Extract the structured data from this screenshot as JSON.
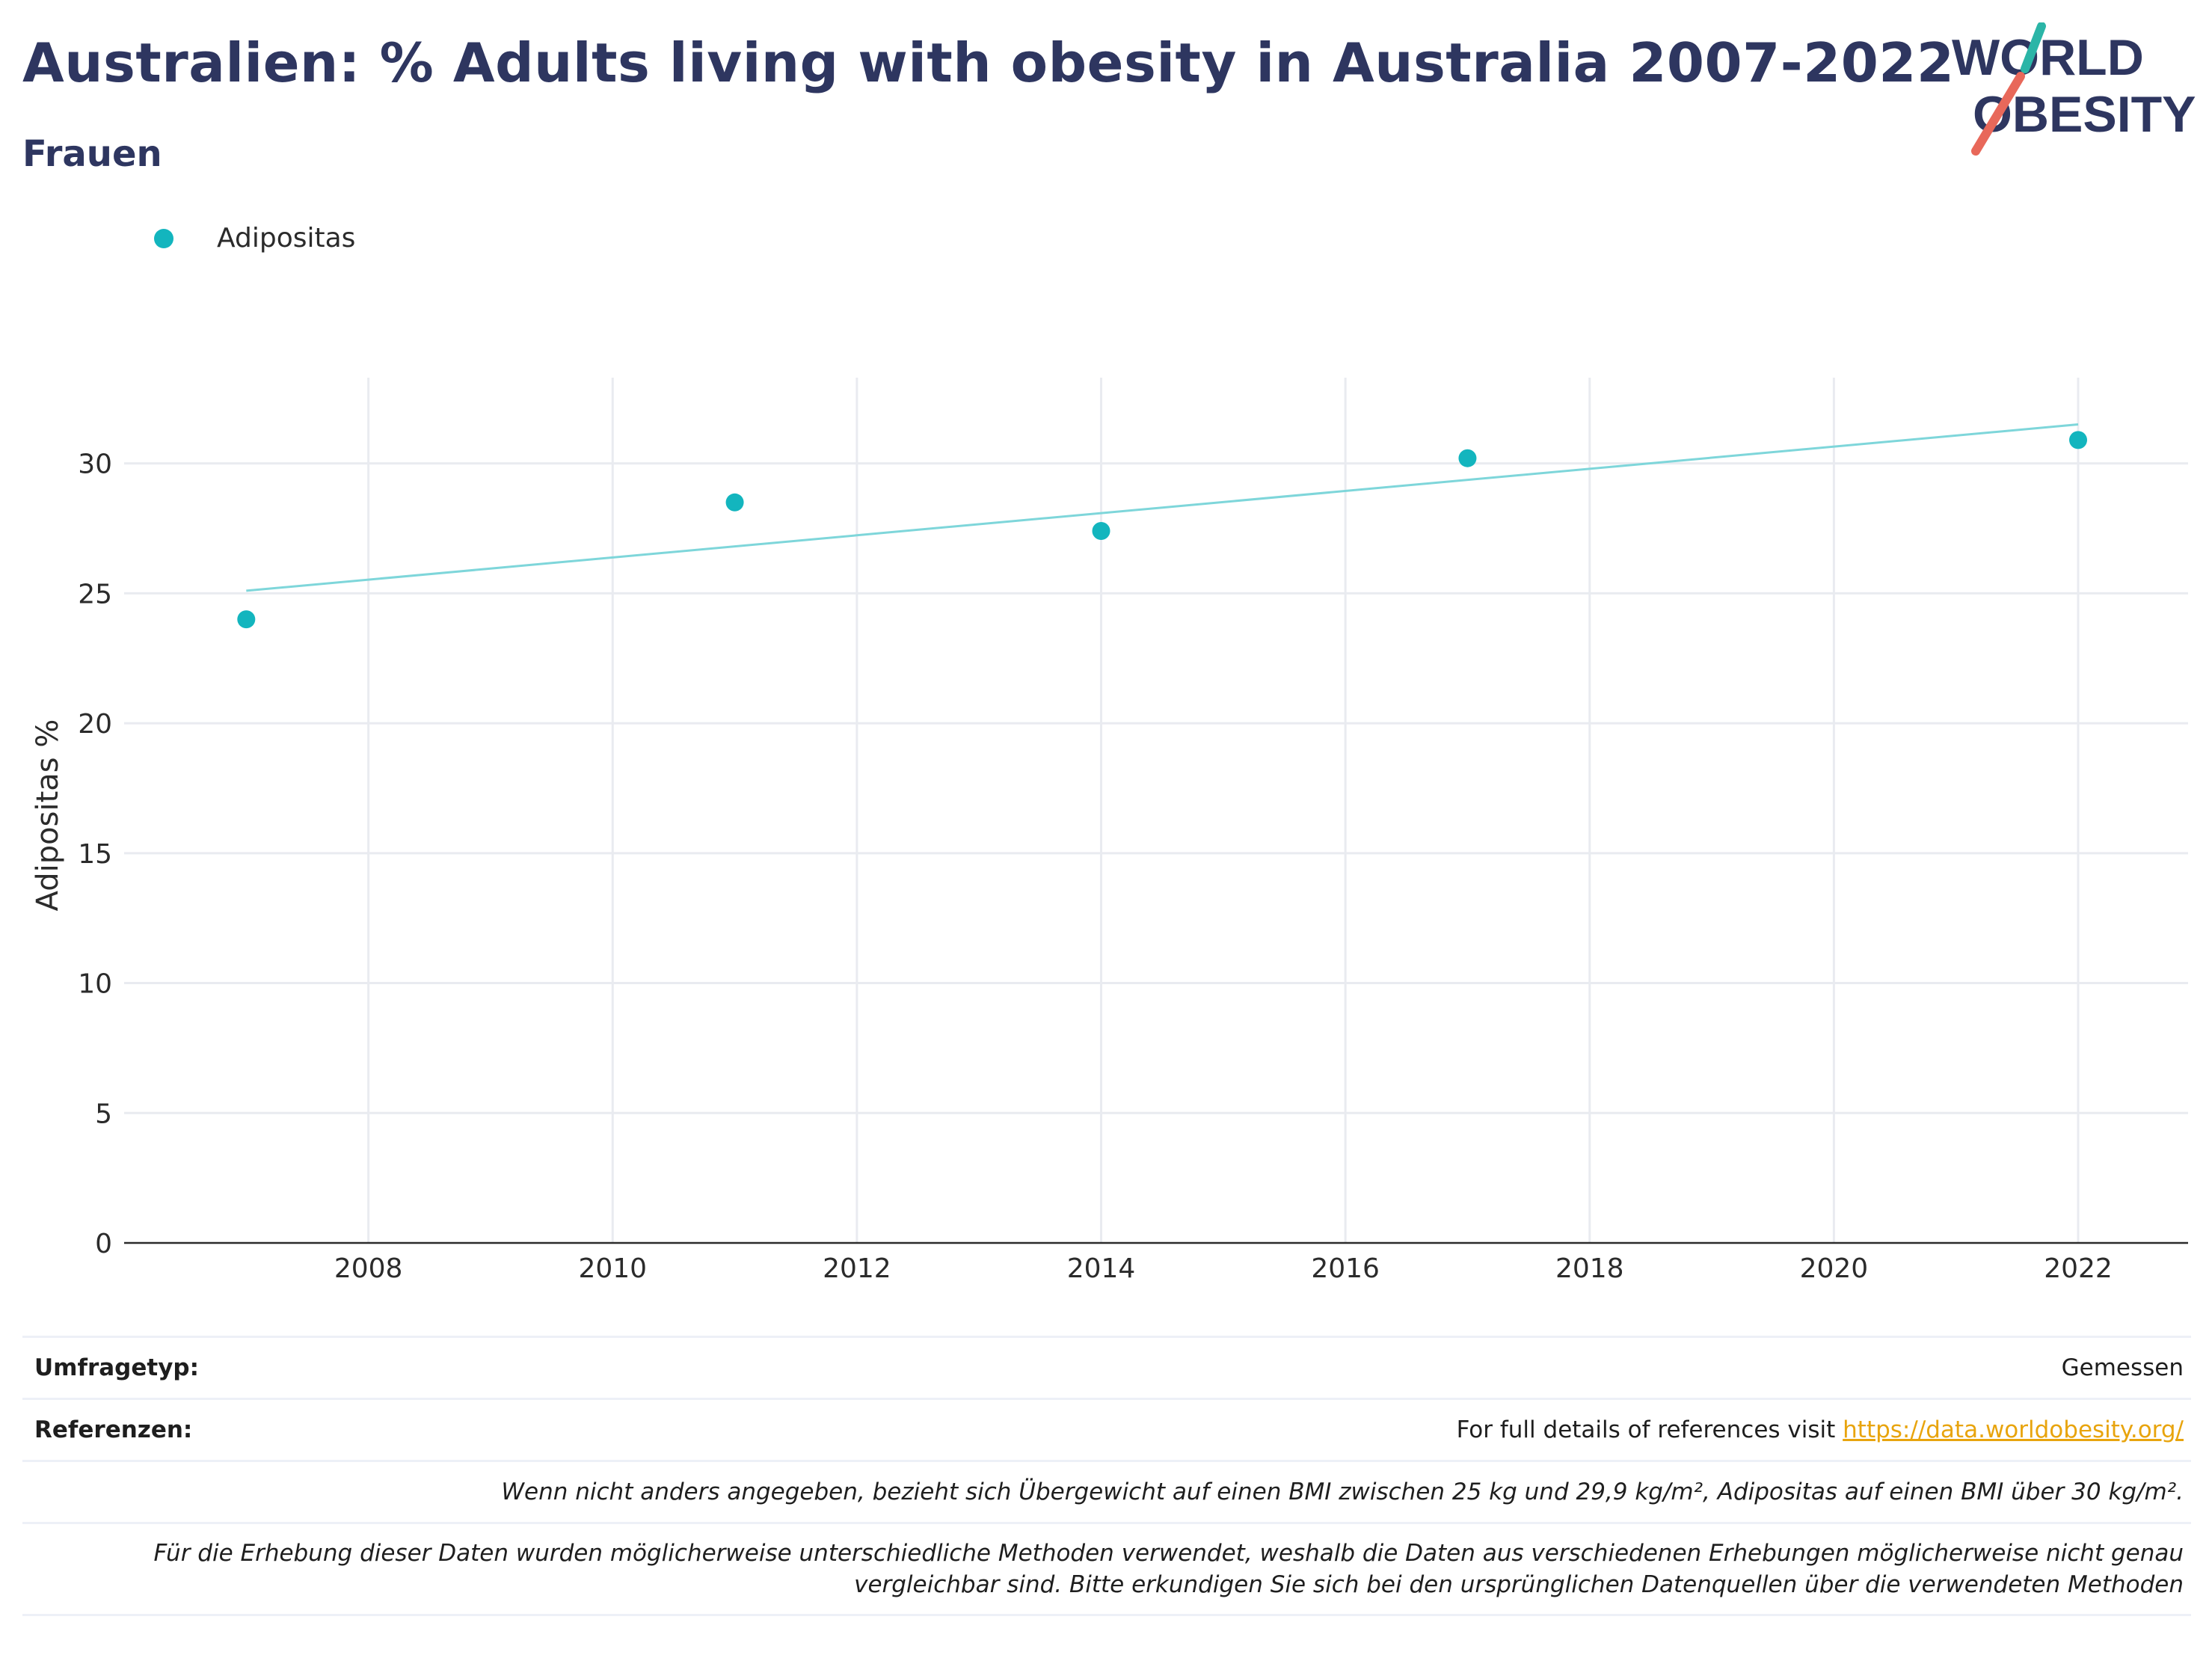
{
  "header": {
    "title": "Australien: % Adults living with obesity in Australia 2007-2022",
    "subtitle": "Frauen"
  },
  "logo": {
    "line1": "WORLD",
    "line2": "OBESITY"
  },
  "colors": {
    "title": "#2e3660",
    "series": "#13b5be",
    "trend": "#7ed6da",
    "grid": "#e9ebf0",
    "link": "#e8a40d",
    "logo_teal": "#2bb5a7",
    "logo_red": "#e8685a"
  },
  "chart_data": {
    "type": "scatter",
    "title": "Australien: % Adults living with obesity in Australia 2007-2022",
    "subtitle": "Frauen",
    "xlabel": "",
    "ylabel": "Adipositas %",
    "xlim": [
      2006,
      2022.9
    ],
    "ylim": [
      0,
      33.3
    ],
    "x_ticks": [
      2008,
      2010,
      2012,
      2014,
      2016,
      2018,
      2020,
      2022
    ],
    "y_ticks": [
      0,
      5,
      10,
      15,
      20,
      25,
      30
    ],
    "grid": true,
    "legend_position": "top-left",
    "series": [
      {
        "name": "Adipositas",
        "x": [
          2007,
          2011,
          2014,
          2017,
          2022
        ],
        "y": [
          24.0,
          28.5,
          27.4,
          30.2,
          30.9
        ]
      }
    ],
    "trendline": {
      "x": [
        2007,
        2022
      ],
      "y": [
        25.1,
        31.5
      ]
    }
  },
  "info": {
    "survey_type_label": "Umfragetyp:",
    "survey_type_value": "Gemessen",
    "references_label": "Referenzen:",
    "references_text": "For full details of references visit ",
    "references_link": "https://data.worldobesity.org/",
    "note1": "Wenn nicht anders angegeben, bezieht sich Übergewicht auf einen BMI zwischen 25 kg und 29,9 kg/m², Adipositas auf einen BMI über 30 kg/m².",
    "note2_line1": "Für die Erhebung dieser Daten wurden möglicherweise unterschiedliche Methoden verwendet, weshalb die Daten aus verschiedenen Erhebungen möglicherweise nicht genau",
    "note2_line2": "vergleichbar sind. Bitte erkundigen Sie sich bei den ursprünglichen Datenquellen über die verwendeten Methoden"
  }
}
